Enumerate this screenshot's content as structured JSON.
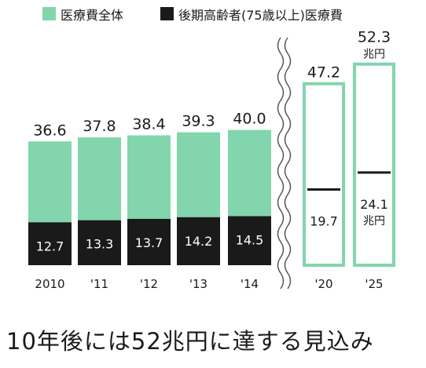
{
  "chart_data": {
    "type": "bar",
    "legend": [
      {
        "name": "医療費全体",
        "color": "#82d5ac"
      },
      {
        "name": "後期高齢者(75歳以上)医療費",
        "color": "#1a1a1a"
      }
    ],
    "legend_placement": "top",
    "categories": [
      "2010",
      "'11",
      "'12",
      "'13",
      "'14",
      "'20",
      "'25"
    ],
    "series": [
      {
        "name": "医療費全体",
        "values": [
          36.6,
          37.8,
          38.4,
          39.3,
          40.0,
          47.2,
          52.3
        ]
      },
      {
        "name": "後期高齢者(75歳以上)医療費",
        "values": [
          12.7,
          13.3,
          13.7,
          14.2,
          14.5,
          19.7,
          24.1
        ]
      }
    ],
    "total_labels": [
      "36.6",
      "37.8",
      "38.4",
      "39.3",
      "40.0",
      "47.2",
      "52.3"
    ],
    "elderly_labels": [
      "12.7",
      "13.3",
      "13.7",
      "14.2",
      "14.5",
      "19.7",
      "24.1"
    ],
    "unit": "兆円",
    "projected_categories": [
      "'20",
      "'25"
    ],
    "axis_break_between": [
      "'14",
      "'20"
    ],
    "grid": false,
    "colors": {
      "total": "#82d5ac",
      "elderly": "#1a1a1a",
      "projected_outline": "#82d5ac"
    }
  },
  "caption": "10年後には52兆円に達する見込み"
}
